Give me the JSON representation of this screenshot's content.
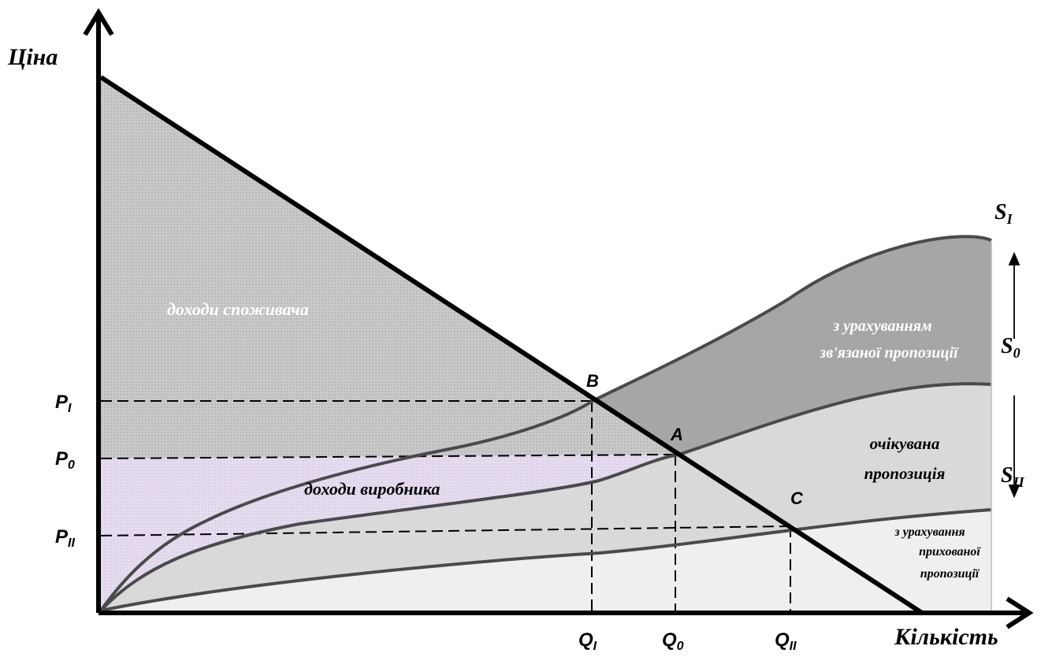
{
  "axes": {
    "y_label": "Ціна",
    "x_label": "Кількість"
  },
  "price_labels": {
    "p1": "P",
    "p1_sub": "I",
    "p0": "P",
    "p0_sub": "0",
    "p2": "P",
    "p2_sub": "II"
  },
  "quantity_labels": {
    "q1": "Q",
    "q1_sub": "I",
    "q0": "Q",
    "q0_sub": "0",
    "q2": "Q",
    "q2_sub": "II"
  },
  "points": {
    "a": "A",
    "b": "B",
    "c": "C"
  },
  "curve_labels": {
    "s1": "S",
    "s1_sub": "I",
    "s0": "S",
    "s0_sub": "0",
    "s2": "S",
    "s2_sub": "II"
  },
  "regions": {
    "consumer": "доходи споживача",
    "producer": "доходи виробника",
    "linked_line1": "з урахуванням",
    "linked_line2": "зв'язаної пропозиції",
    "expected_line1": "очікувана",
    "expected_line2": "пропозиція",
    "hidden_line1": "з урахування",
    "hidden_line2": "прихованої",
    "hidden_line3": "пропозиції"
  },
  "colors": {
    "consumer_fill": "#c9c9c9",
    "producer_fill": "#e6dcef",
    "linked_fill": "#a6a6a6",
    "expected_fill": "#d9d9d9",
    "hidden_fill": "#efefef",
    "curve": "#4a4a4a",
    "demand": "#000000"
  }
}
